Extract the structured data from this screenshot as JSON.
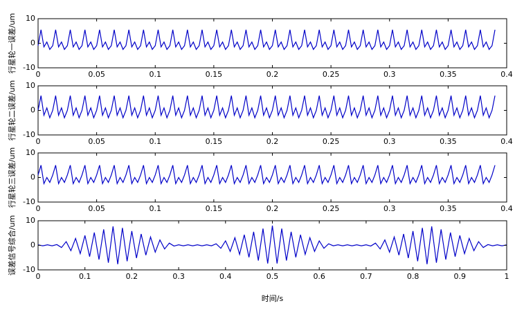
{
  "chart_data": [
    {
      "type": "line",
      "ylabel": "行星轮一误差/um",
      "color": "#0000c8",
      "xlim": [
        0,
        0.4
      ],
      "ylim": [
        -10,
        10
      ],
      "xticks": [
        0,
        0.05,
        0.1,
        0.15,
        0.2,
        0.25,
        0.3,
        0.35,
        0.4
      ],
      "yticks": [
        -10,
        0,
        10
      ],
      "x": [
        0,
        0.0025,
        0.005,
        0.0075,
        0.01,
        0.0125,
        0.015,
        0.0175,
        0.02,
        0.0225,
        0.025,
        0.0275,
        0.03,
        0.0325,
        0.035,
        0.0375,
        0.04,
        0.0425,
        0.045,
        0.0475,
        0.05,
        0.0525,
        0.055,
        0.0575,
        0.06,
        0.0625,
        0.065,
        0.0675,
        0.07,
        0.0725,
        0.075,
        0.0775,
        0.08,
        0.0825,
        0.085,
        0.0875,
        0.09,
        0.0925,
        0.095,
        0.0975,
        0.1,
        0.1025,
        0.105,
        0.1075,
        0.11,
        0.1125,
        0.115,
        0.1175,
        0.12,
        0.1225,
        0.125,
        0.1275,
        0.13,
        0.1325,
        0.135,
        0.1375,
        0.14,
        0.1425,
        0.145,
        0.1475,
        0.15,
        0.1525,
        0.155,
        0.1575,
        0.16,
        0.1625,
        0.165,
        0.1675,
        0.17,
        0.1725,
        0.175,
        0.1775,
        0.18,
        0.1825,
        0.185,
        0.1875,
        0.19,
        0.1925,
        0.195,
        0.1975,
        0.2,
        0.2025,
        0.205,
        0.2075,
        0.21,
        0.2125,
        0.215,
        0.2175,
        0.22,
        0.2225,
        0.225,
        0.2275,
        0.23,
        0.2325,
        0.235,
        0.2375,
        0.24,
        0.2425,
        0.245,
        0.2475,
        0.25,
        0.2525,
        0.255,
        0.2575,
        0.26,
        0.2625,
        0.265,
        0.2675,
        0.27,
        0.2725,
        0.275,
        0.2775,
        0.28,
        0.2825,
        0.285,
        0.2875,
        0.29,
        0.2925,
        0.295,
        0.2975,
        0.3,
        0.3025,
        0.305,
        0.3075,
        0.31,
        0.3125,
        0.315,
        0.3175,
        0.32,
        0.3225,
        0.325,
        0.3275,
        0.33,
        0.3325,
        0.335,
        0.3375,
        0.34,
        0.3425,
        0.345,
        0.3475,
        0.35,
        0.3525,
        0.355,
        0.3575,
        0.36,
        0.3625,
        0.365,
        0.3675,
        0.37,
        0.3725,
        0.375,
        0.3775,
        0.38,
        0.3825,
        0.385,
        0.3875,
        0.39
      ],
      "values": [
        -1,
        5.5,
        -1.5,
        0.5,
        -2.5,
        -1,
        5.5,
        -1.5,
        0.5,
        -2.5,
        -1,
        5.5,
        -1.5,
        0.5,
        -2.5,
        -1,
        5.5,
        -1.5,
        0.5,
        -2.5,
        -1,
        5.5,
        -1.5,
        0.5,
        -2.5,
        -1,
        5.5,
        -1.5,
        0.5,
        -2.5,
        -1,
        5.5,
        -1.5,
        0.5,
        -2.5,
        -1,
        5.5,
        -1.5,
        0.5,
        -2.5,
        -1,
        5.5,
        -1.5,
        0.5,
        -2.5,
        -1,
        5.5,
        -1.5,
        0.5,
        -2.5,
        -1,
        5.5,
        -1.5,
        0.5,
        -2.5,
        -1,
        5.5,
        -1.5,
        0.5,
        -2.5,
        -1,
        5.5,
        -1.5,
        0.5,
        -2.5,
        -1,
        5.5,
        -1.5,
        0.5,
        -2.5,
        -1,
        5.5,
        -1.5,
        0.5,
        -2.5,
        -1,
        5.5,
        -1.5,
        0.5,
        -2.5,
        -1,
        5.5,
        -1.5,
        0.5,
        -2.5,
        -1,
        5.5,
        -1.5,
        0.5,
        -2.5,
        -1,
        5.5,
        -1.5,
        0.5,
        -2.5,
        -1,
        5.5,
        -1.5,
        0.5,
        -2.5,
        -1,
        5.5,
        -1.5,
        0.5,
        -2.5,
        -1,
        5.5,
        -1.5,
        0.5,
        -2.5,
        -1,
        5.5,
        -1.5,
        0.5,
        -2.5,
        -1,
        5.5,
        -1.5,
        0.5,
        -2.5,
        -1,
        5.5,
        -1.5,
        0.5,
        -2.5,
        -1,
        5.5,
        -1.5,
        0.5,
        -2.5,
        -1,
        5.5,
        -1.5,
        0.5,
        -2.5,
        -1,
        5.5,
        -1.5,
        0.5,
        -2.5,
        -1,
        5.5,
        -1.5,
        0.5,
        -2.5,
        -1,
        5.5,
        -1.5,
        0.5,
        -2.5,
        -1,
        5.5,
        -1.5,
        0.5,
        -2.5,
        -1,
        5.5
      ]
    },
    {
      "type": "line",
      "ylabel": "行星轮二误差/um",
      "color": "#0000c8",
      "xlim": [
        0,
        0.4
      ],
      "ylim": [
        -10,
        10
      ],
      "xticks": [
        0,
        0.05,
        0.1,
        0.15,
        0.2,
        0.25,
        0.3,
        0.35,
        0.4
      ],
      "yticks": [
        -10,
        0,
        10
      ],
      "x": [
        0,
        0.0025,
        0.005,
        0.0075,
        0.01,
        0.0125,
        0.015,
        0.0175,
        0.02,
        0.0225,
        0.025,
        0.0275,
        0.03,
        0.0325,
        0.035,
        0.0375,
        0.04,
        0.0425,
        0.045,
        0.0475,
        0.05,
        0.0525,
        0.055,
        0.0575,
        0.06,
        0.0625,
        0.065,
        0.0675,
        0.07,
        0.0725,
        0.075,
        0.0775,
        0.08,
        0.0825,
        0.085,
        0.0875,
        0.09,
        0.0925,
        0.095,
        0.0975,
        0.1,
        0.1025,
        0.105,
        0.1075,
        0.11,
        0.1125,
        0.115,
        0.1175,
        0.12,
        0.1225,
        0.125,
        0.1275,
        0.13,
        0.1325,
        0.135,
        0.1375,
        0.14,
        0.1425,
        0.145,
        0.1475,
        0.15,
        0.1525,
        0.155,
        0.1575,
        0.16,
        0.1625,
        0.165,
        0.1675,
        0.17,
        0.1725,
        0.175,
        0.1775,
        0.18,
        0.1825,
        0.185,
        0.1875,
        0.19,
        0.1925,
        0.195,
        0.1975,
        0.2,
        0.2025,
        0.205,
        0.2075,
        0.21,
        0.2125,
        0.215,
        0.2175,
        0.22,
        0.2225,
        0.225,
        0.2275,
        0.23,
        0.2325,
        0.235,
        0.2375,
        0.24,
        0.2425,
        0.245,
        0.2475,
        0.25,
        0.2525,
        0.255,
        0.2575,
        0.26,
        0.2625,
        0.265,
        0.2675,
        0.27,
        0.2725,
        0.275,
        0.2775,
        0.28,
        0.2825,
        0.285,
        0.2875,
        0.29,
        0.2925,
        0.295,
        0.2975,
        0.3,
        0.3025,
        0.305,
        0.3075,
        0.31,
        0.3125,
        0.315,
        0.3175,
        0.32,
        0.3225,
        0.325,
        0.3275,
        0.33,
        0.3325,
        0.335,
        0.3375,
        0.34,
        0.3425,
        0.345,
        0.3475,
        0.35,
        0.3525,
        0.355,
        0.3575,
        0.36,
        0.3625,
        0.365,
        0.3675,
        0.37,
        0.3725,
        0.375,
        0.3775,
        0.38,
        0.3825,
        0.385,
        0.3875,
        0.39
      ],
      "values": [
        0,
        6,
        -2,
        1,
        -3,
        0,
        6,
        -2,
        1,
        -3,
        0,
        6,
        -2,
        1,
        -3,
        0,
        6,
        -2,
        1,
        -3,
        0,
        6,
        -2,
        1,
        -3,
        0,
        6,
        -2,
        1,
        -3,
        0,
        6,
        -2,
        1,
        -3,
        0,
        6,
        -2,
        1,
        -3,
        0,
        6,
        -2,
        1,
        -3,
        0,
        6,
        -2,
        1,
        -3,
        0,
        6,
        -2,
        1,
        -3,
        0,
        6,
        -2,
        1,
        -3,
        0,
        6,
        -2,
        1,
        -3,
        0,
        6,
        -2,
        1,
        -3,
        0,
        6,
        -2,
        1,
        -3,
        0,
        6,
        -2,
        1,
        -3,
        0,
        6,
        -2,
        1,
        -3,
        0,
        6,
        -2,
        1,
        -3,
        0,
        6,
        -2,
        1,
        -3,
        0,
        6,
        -2,
        1,
        -3,
        0,
        6,
        -2,
        1,
        -3,
        0,
        6,
        -2,
        1,
        -3,
        0,
        6,
        -2,
        1,
        -3,
        0,
        6,
        -2,
        1,
        -3,
        0,
        6,
        -2,
        1,
        -3,
        0,
        6,
        -2,
        1,
        -3,
        0,
        6,
        -2,
        1,
        -3,
        0,
        6,
        -2,
        1,
        -3,
        0,
        6,
        -2,
        1,
        -3,
        0,
        6,
        -2,
        1,
        -3,
        0,
        6,
        -2,
        1,
        -3,
        0,
        6
      ]
    },
    {
      "type": "line",
      "ylabel": "行星轮三误差/um",
      "color": "#0000c8",
      "xlim": [
        0,
        0.4
      ],
      "ylim": [
        -10,
        10
      ],
      "xticks": [
        0,
        0.05,
        0.1,
        0.15,
        0.2,
        0.25,
        0.3,
        0.35,
        0.4
      ],
      "yticks": [
        -10,
        0,
        10
      ],
      "x": [
        0,
        0.0025,
        0.005,
        0.0075,
        0.01,
        0.0125,
        0.015,
        0.0175,
        0.02,
        0.0225,
        0.025,
        0.0275,
        0.03,
        0.0325,
        0.035,
        0.0375,
        0.04,
        0.0425,
        0.045,
        0.0475,
        0.05,
        0.0525,
        0.055,
        0.0575,
        0.06,
        0.0625,
        0.065,
        0.0675,
        0.07,
        0.0725,
        0.075,
        0.0775,
        0.08,
        0.0825,
        0.085,
        0.0875,
        0.09,
        0.0925,
        0.095,
        0.0975,
        0.1,
        0.1025,
        0.105,
        0.1075,
        0.11,
        0.1125,
        0.115,
        0.1175,
        0.12,
        0.1225,
        0.125,
        0.1275,
        0.13,
        0.1325,
        0.135,
        0.1375,
        0.14,
        0.1425,
        0.145,
        0.1475,
        0.15,
        0.1525,
        0.155,
        0.1575,
        0.16,
        0.1625,
        0.165,
        0.1675,
        0.17,
        0.1725,
        0.175,
        0.1775,
        0.18,
        0.1825,
        0.185,
        0.1875,
        0.19,
        0.1925,
        0.195,
        0.1975,
        0.2,
        0.2025,
        0.205,
        0.2075,
        0.21,
        0.2125,
        0.215,
        0.2175,
        0.22,
        0.2225,
        0.225,
        0.2275,
        0.23,
        0.2325,
        0.235,
        0.2375,
        0.24,
        0.2425,
        0.245,
        0.2475,
        0.25,
        0.2525,
        0.255,
        0.2575,
        0.26,
        0.2625,
        0.265,
        0.2675,
        0.27,
        0.2725,
        0.275,
        0.2775,
        0.28,
        0.2825,
        0.285,
        0.2875,
        0.29,
        0.2925,
        0.295,
        0.2975,
        0.3,
        0.3025,
        0.305,
        0.3075,
        0.31,
        0.3125,
        0.315,
        0.3175,
        0.32,
        0.3225,
        0.325,
        0.3275,
        0.33,
        0.3325,
        0.335,
        0.3375,
        0.34,
        0.3425,
        0.345,
        0.3475,
        0.35,
        0.3525,
        0.355,
        0.3575,
        0.36,
        0.3625,
        0.365,
        0.3675,
        0.37,
        0.3725,
        0.375,
        0.3775,
        0.38,
        0.3825,
        0.385,
        0.3875,
        0.39
      ],
      "values": [
        1,
        5,
        -2.5,
        0,
        -2,
        1,
        5,
        -2.5,
        0,
        -2,
        1,
        5,
        -2.5,
        0,
        -2,
        1,
        5,
        -2.5,
        0,
        -2,
        1,
        5,
        -2.5,
        0,
        -2,
        1,
        5,
        -2.5,
        0,
        -2,
        1,
        5,
        -2.5,
        0,
        -2,
        1,
        5,
        -2.5,
        0,
        -2,
        1,
        5,
        -2.5,
        0,
        -2,
        1,
        5,
        -2.5,
        0,
        -2,
        1,
        5,
        -2.5,
        0,
        -2,
        1,
        5,
        -2.5,
        0,
        -2,
        1,
        5,
        -2.5,
        0,
        -2,
        1,
        5,
        -2.5,
        0,
        -2,
        1,
        5,
        -2.5,
        0,
        -2,
        1,
        5,
        -2.5,
        0,
        -2,
        1,
        5,
        -2.5,
        0,
        -2,
        1,
        5,
        -2.5,
        0,
        -2,
        1,
        5,
        -2.5,
        0,
        -2,
        1,
        5,
        -2.5,
        0,
        -2,
        1,
        5,
        -2.5,
        0,
        -2,
        1,
        5,
        -2.5,
        0,
        -2,
        1,
        5,
        -2.5,
        0,
        -2,
        1,
        5,
        -2.5,
        0,
        -2,
        1,
        5,
        -2.5,
        0,
        -2,
        1,
        5,
        -2.5,
        0,
        -2,
        1,
        5,
        -2.5,
        0,
        -2,
        1,
        5,
        -2.5,
        0,
        -2,
        1,
        5,
        -2.5,
        0,
        -2,
        1,
        5,
        -2.5,
        0,
        -2,
        1,
        5,
        -2.5,
        0,
        -2,
        1,
        5
      ]
    },
    {
      "type": "line",
      "ylabel": "误差信号综合/um",
      "xlabel": "时间/s",
      "color": "#0000c8",
      "xlim": [
        0,
        1
      ],
      "ylim": [
        -10,
        10
      ],
      "xticks": [
        0,
        0.1,
        0.2,
        0.3,
        0.4,
        0.5,
        0.6,
        0.7,
        0.8,
        0.9,
        1
      ],
      "yticks": [
        -10,
        0,
        10
      ],
      "x": [
        0,
        0.01,
        0.02,
        0.03,
        0.04,
        0.05,
        0.06,
        0.07,
        0.08,
        0.09,
        0.1,
        0.11,
        0.12,
        0.13,
        0.14,
        0.15,
        0.16,
        0.17,
        0.18,
        0.19,
        0.2,
        0.21,
        0.22,
        0.23,
        0.24,
        0.25,
        0.26,
        0.27,
        0.28,
        0.29,
        0.3,
        0.31,
        0.32,
        0.33,
        0.34,
        0.35,
        0.36,
        0.37,
        0.38,
        0.39,
        0.4,
        0.41,
        0.42,
        0.43,
        0.44,
        0.45,
        0.46,
        0.47,
        0.48,
        0.49,
        0.5,
        0.51,
        0.52,
        0.53,
        0.54,
        0.55,
        0.56,
        0.57,
        0.58,
        0.59,
        0.6,
        0.61,
        0.62,
        0.63,
        0.64,
        0.65,
        0.66,
        0.67,
        0.68,
        0.69,
        0.7,
        0.71,
        0.72,
        0.73,
        0.74,
        0.75,
        0.76,
        0.77,
        0.78,
        0.79,
        0.8,
        0.81,
        0.82,
        0.83,
        0.84,
        0.85,
        0.86,
        0.87,
        0.88,
        0.89,
        0.9,
        0.91,
        0.92,
        0.93,
        0.94,
        0.95,
        0.96,
        0.97,
        0.98,
        0.99,
        1
      ],
      "values": [
        0.2,
        -0.2,
        0.2,
        -0.2,
        0.3,
        -0.9,
        1.5,
        -2.2,
        2.8,
        -3.4,
        4,
        -4.6,
        5.2,
        -5.8,
        6.5,
        -7.1,
        7.7,
        -7.7,
        7.1,
        -6.5,
        5.8,
        -5.2,
        4.6,
        -4,
        3.4,
        -2.8,
        2.2,
        -1.5,
        0.9,
        -0.3,
        0.2,
        -0.2,
        0.2,
        -0.2,
        0.2,
        -0.2,
        0.2,
        -0.2,
        0.6,
        -1.2,
        1.8,
        -2.5,
        3.1,
        -3.7,
        4.3,
        -4.9,
        5.5,
        -6.2,
        6.8,
        -7.4,
        8,
        -7.4,
        6.8,
        -6.2,
        5.5,
        -4.9,
        4.3,
        -3.7,
        3.1,
        -2.5,
        1.8,
        -1.2,
        0.6,
        -0.2,
        0.2,
        -0.2,
        0.2,
        -0.2,
        0.2,
        -0.2,
        0.2,
        -0.3,
        0.9,
        -1.5,
        2.2,
        -2.8,
        3.4,
        -4,
        4.6,
        -5.2,
        5.8,
        -6.5,
        7.1,
        -7.7,
        7.7,
        -7.1,
        6.5,
        -5.8,
        5.2,
        -4.6,
        4,
        -3.4,
        2.8,
        -2.2,
        1.5,
        -0.9,
        0.3,
        -0.2,
        0.2,
        -0.2,
        0.2
      ]
    }
  ]
}
